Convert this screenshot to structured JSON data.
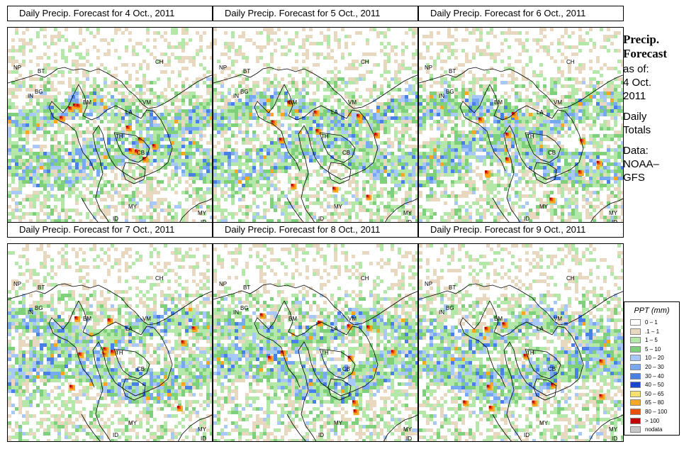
{
  "panels": [
    {
      "title": "Daily Precip. Forecast for  4 Oct., 2011"
    },
    {
      "title": "Daily Precip. Forecast for  5 Oct., 2011"
    },
    {
      "title": "Daily Precip. Forecast for  6 Oct., 2011"
    },
    {
      "title": "Daily Precip. Forecast for  7 Oct., 2011"
    },
    {
      "title": "Daily Precip. Forecast for  8 Oct., 2011"
    },
    {
      "title": "Daily Precip. Forecast for  9 Oct., 2011"
    }
  ],
  "map_labels": [
    "NP",
    "BT",
    "BG",
    "IN",
    "BM",
    "CH",
    "VM",
    "LA",
    "TH",
    "CB",
    "MY",
    "MY",
    "ID",
    "ID"
  ],
  "sidebar": {
    "heading1": "Precip.",
    "heading2": "Forecast",
    "asof": "as of:",
    "date1": "4 Oct.",
    "date2": "2011",
    "daily1": "Daily",
    "daily2": "Totals",
    "data1": "Data:",
    "data2": "NOAA–",
    "data3": "GFS"
  },
  "legend": {
    "title": "PPT (mm)",
    "items": [
      {
        "label": "0 – 1",
        "color": "#ffffff"
      },
      {
        "label": ".1 – 1",
        "color": "#e8d8c0"
      },
      {
        "label": "1 – 5",
        "color": "#b4e8a8"
      },
      {
        "label": "5 – 10",
        "color": "#7ed07a"
      },
      {
        "label": "10 – 20",
        "color": "#a8c8f8"
      },
      {
        "label": "20 – 30",
        "color": "#78a8f0"
      },
      {
        "label": "30 – 40",
        "color": "#4880e8"
      },
      {
        "label": "40 – 50",
        "color": "#1848d0"
      },
      {
        "label": "50 – 65",
        "color": "#f8e070"
      },
      {
        "label": "65 – 80",
        "color": "#f8a820"
      },
      {
        "label": "80 – 100",
        "color": "#e85010"
      },
      {
        "label": "> 100",
        "color": "#c00000"
      },
      {
        "label": "nodata",
        "color": "#c8c8c8"
      }
    ]
  }
}
